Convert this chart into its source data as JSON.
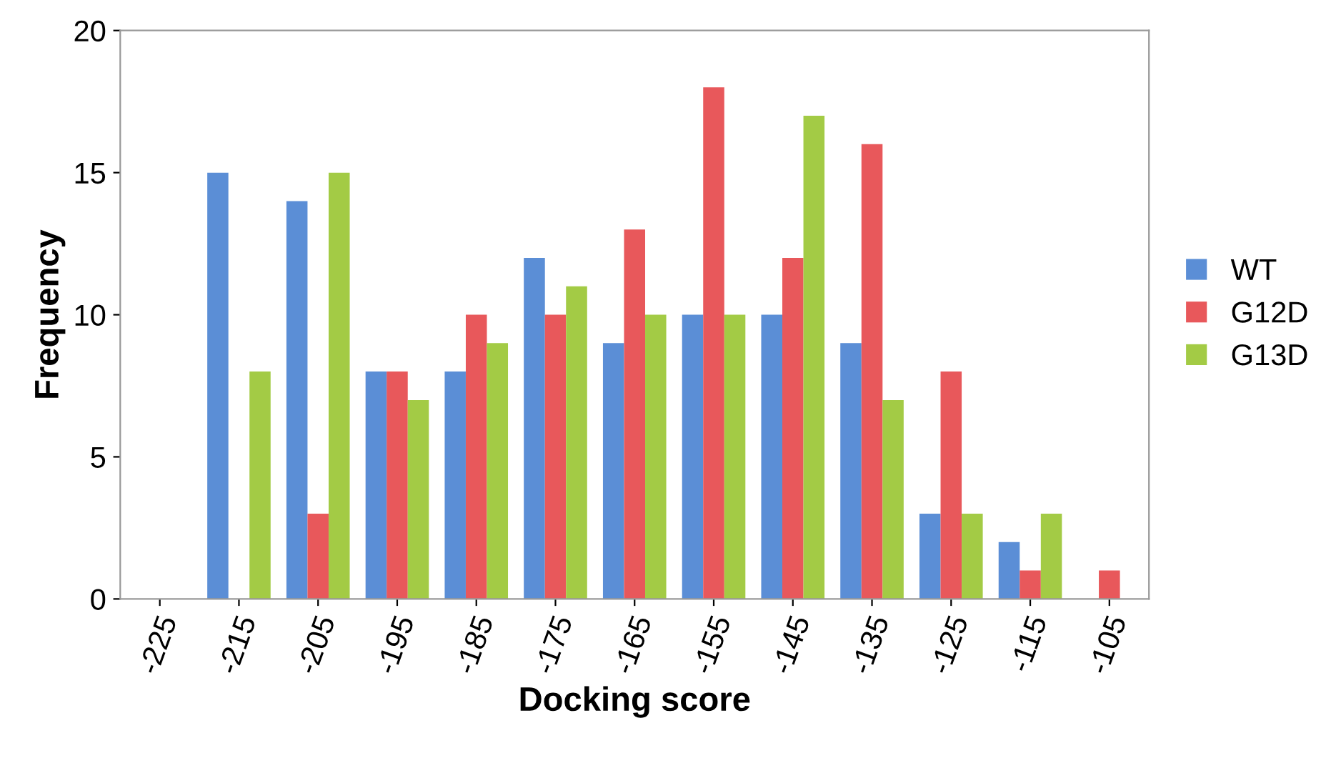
{
  "chart_data": {
    "type": "bar",
    "xlabel": "Docking score",
    "ylabel": "Frequency",
    "categories": [
      "-225",
      "-215",
      "-205",
      "-195",
      "-185",
      "-175",
      "-165",
      "-155",
      "-145",
      "-135",
      "-125",
      "-115",
      "-105"
    ],
    "series": [
      {
        "name": "WT",
        "color": "#5b8ed6",
        "values": [
          0,
          15,
          14,
          8,
          8,
          12,
          9,
          10,
          10,
          9,
          3,
          2,
          0
        ]
      },
      {
        "name": "G12D",
        "color": "#e8585b",
        "values": [
          0,
          0,
          3,
          8,
          10,
          10,
          13,
          18,
          12,
          16,
          8,
          1,
          1
        ]
      },
      {
        "name": "G13D",
        "color": "#a3cb45",
        "values": [
          0,
          8,
          15,
          7,
          9,
          11,
          10,
          10,
          17,
          7,
          3,
          3,
          0
        ]
      }
    ],
    "ylim": [
      0,
      20
    ],
    "yticks": [
      0,
      5,
      10,
      15,
      20
    ],
    "grid": false,
    "legend": "right"
  }
}
